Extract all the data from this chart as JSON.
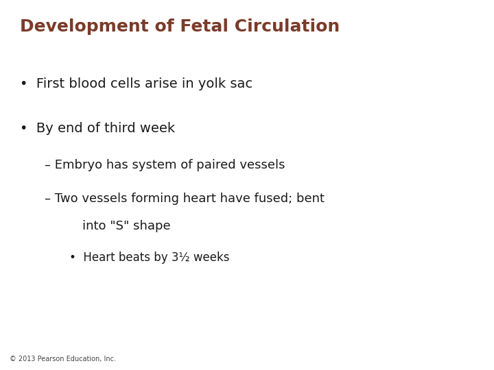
{
  "title": "Development of Fetal Circulation",
  "title_color": "#7B3B2A",
  "title_fontsize": 18,
  "background_color": "#FFFFFF",
  "bullet1": "First blood cells arise in yolk sac",
  "bullet2": "By end of third week",
  "sub1": "Embryo has system of paired vessels",
  "sub2_line1": "Two vessels forming heart have fused; bent",
  "sub2_line2": "    into \"S\" shape",
  "sub_sub1": "Heart beats by 3½ weeks",
  "bullet_color": "#1a1a1a",
  "bullet_fontsize": 14,
  "sub_fontsize": 13,
  "sub_sub_fontsize": 12,
  "footer": "© 2013 Pearson Education, Inc.",
  "footer_fontsize": 7
}
